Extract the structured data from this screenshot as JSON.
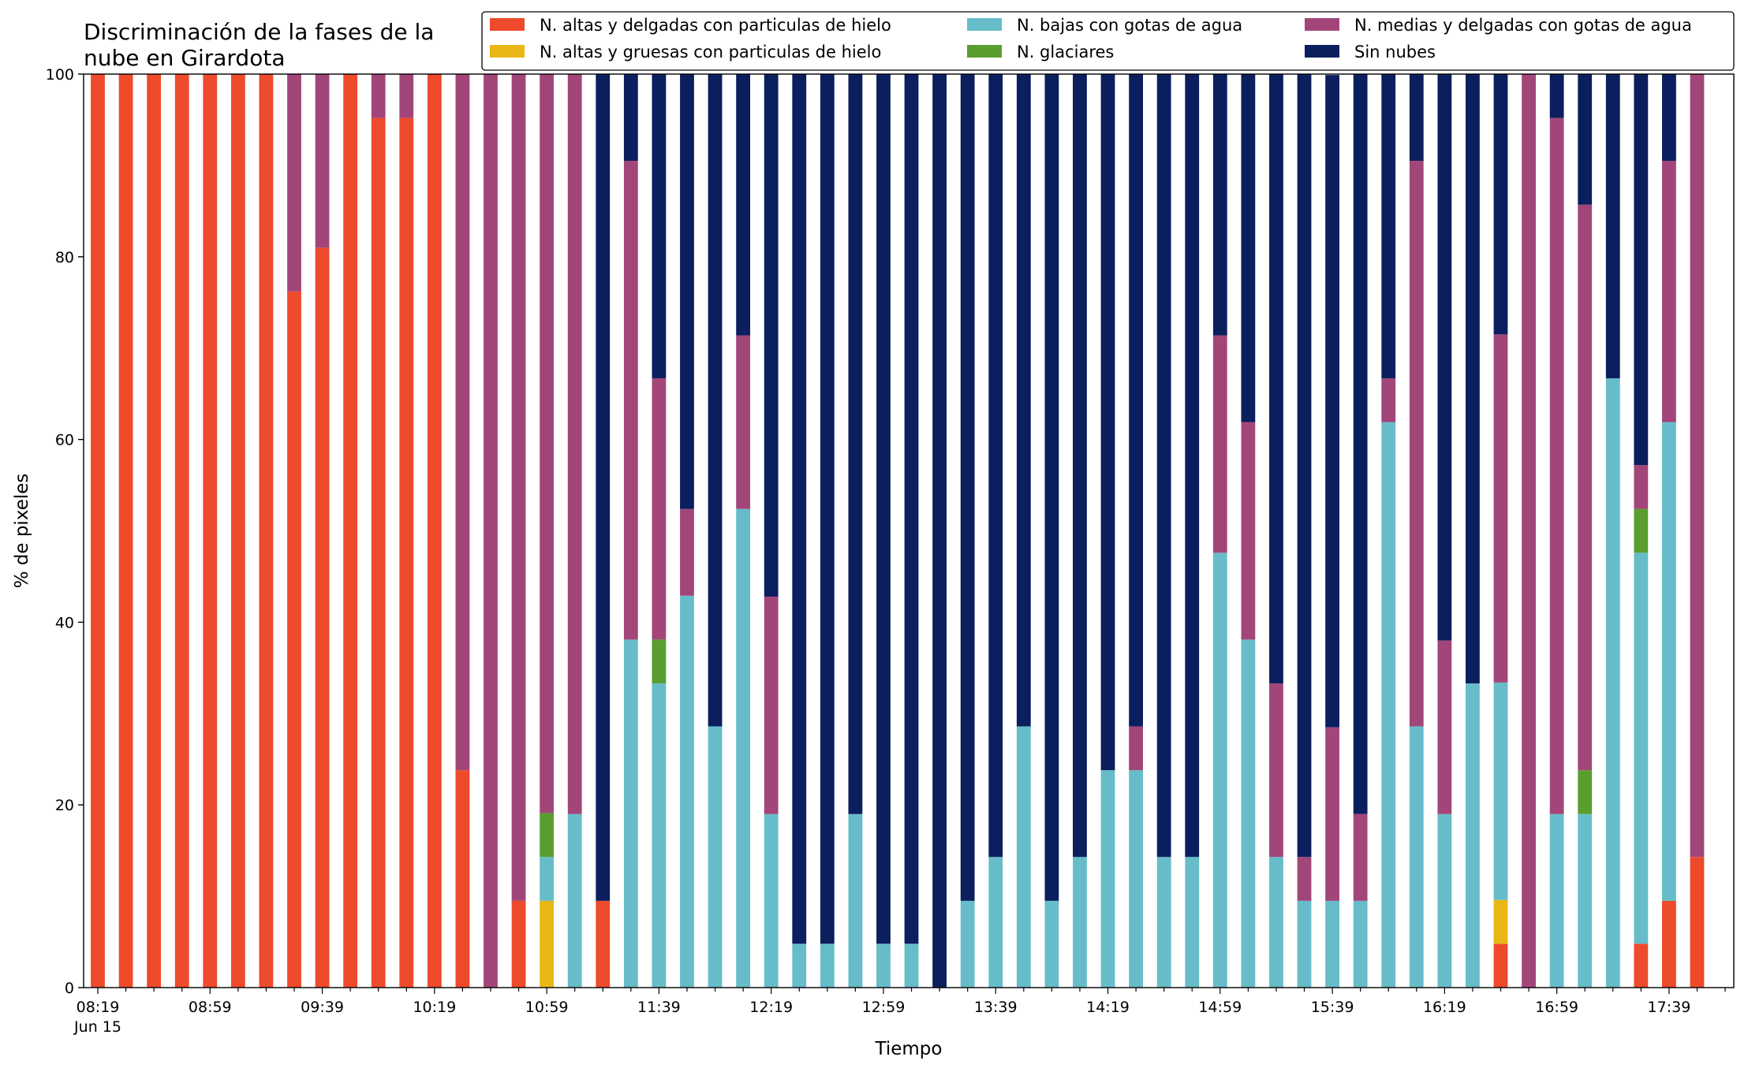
{
  "chart_data": {
    "type": "bar",
    "stacked": true,
    "title_lines": [
      "Discriminación de la fases de la",
      "nube en Girardota"
    ],
    "xlabel": "Tiempo",
    "ylabel": "% de pixeles",
    "ylim": [
      0,
      100
    ],
    "yticks": [
      0,
      20,
      40,
      60,
      80,
      100
    ],
    "grid": false,
    "legend_position": "top-right",
    "x_start": "08:19",
    "x_step_minutes": 10,
    "x_sublabel": "Jun 15",
    "x_labeled_ticks": [
      "08:19",
      "08:59",
      "09:39",
      "10:19",
      "10:59",
      "11:39",
      "12:19",
      "12:59",
      "13:39",
      "14:19",
      "14:59",
      "15:39",
      "16:19",
      "16:59",
      "17:39"
    ],
    "categories": [
      "08:19",
      "08:29",
      "08:39",
      "08:49",
      "08:59",
      "09:09",
      "09:19",
      "09:29",
      "09:39",
      "09:49",
      "09:59",
      "10:09",
      "10:19",
      "10:29",
      "10:39",
      "10:49",
      "10:59",
      "11:09",
      "11:19",
      "11:29",
      "11:39",
      "11:49",
      "11:59",
      "12:09",
      "12:19",
      "12:29",
      "12:39",
      "12:49",
      "12:59",
      "13:09",
      "13:19",
      "13:29",
      "13:39",
      "13:49",
      "13:59",
      "14:09",
      "14:19",
      "14:29",
      "14:39",
      "14:49",
      "14:59",
      "15:09",
      "15:19",
      "15:29",
      "15:39",
      "15:49",
      "15:59",
      "16:09",
      "16:19",
      "16:29",
      "16:39",
      "16:49",
      "16:59",
      "17:09",
      "17:19",
      "17:29",
      "17:39",
      "17:49"
    ],
    "series": [
      {
        "name": "N. altas y delgadas con particulas de hielo",
        "color": "#ee4a2c",
        "values": [
          100,
          100,
          100,
          100,
          100,
          100,
          100,
          76.2,
          81,
          100,
          95.2,
          95.2,
          100,
          23.8,
          0,
          9.5,
          0,
          0,
          9.5,
          0,
          0,
          0,
          0,
          0,
          0,
          0,
          0,
          0,
          0,
          0,
          0,
          0,
          0,
          0,
          0,
          0,
          0,
          0,
          0,
          0,
          0,
          0,
          0,
          0,
          0,
          0,
          0,
          0,
          0,
          0,
          4.8,
          0,
          0,
          0,
          0,
          4.8,
          9.5,
          14.3
        ]
      },
      {
        "name": "N. altas y gruesas con particulas de hielo",
        "color": "#e8b715",
        "values": [
          0,
          0,
          0,
          0,
          0,
          0,
          0,
          0,
          0,
          0,
          0,
          0,
          0,
          0,
          0,
          0,
          9.5,
          0,
          0,
          0,
          0,
          0,
          0,
          0,
          0,
          0,
          0,
          0,
          0,
          0,
          0,
          0,
          0,
          0,
          0,
          0,
          0,
          0,
          0,
          0,
          0,
          0,
          0,
          0,
          0,
          0,
          0,
          0,
          0,
          0,
          4.8,
          0,
          0,
          0,
          0,
          0,
          0,
          0
        ]
      },
      {
        "name": "N. bajas con gotas de agua",
        "color": "#66bdc9",
        "values": [
          0,
          0,
          0,
          0,
          0,
          0,
          0,
          0,
          0,
          0,
          0,
          0,
          0,
          0,
          0,
          0,
          4.8,
          19,
          0,
          38.1,
          33.3,
          42.9,
          28.6,
          52.4,
          19,
          4.8,
          4.8,
          19,
          4.8,
          4.8,
          0,
          9.5,
          14.3,
          28.6,
          9.5,
          14.3,
          23.8,
          23.8,
          14.3,
          14.3,
          47.6,
          38.1,
          14.3,
          9.5,
          9.5,
          9.5,
          61.9,
          28.6,
          19,
          33.3,
          23.8,
          0,
          19,
          19,
          66.7,
          42.8,
          52.4,
          0
        ]
      },
      {
        "name": "N. glaciares",
        "color": "#5a9e2f",
        "values": [
          0,
          0,
          0,
          0,
          0,
          0,
          0,
          0,
          0,
          0,
          0,
          0,
          0,
          0,
          0,
          0,
          4.8,
          0,
          0,
          0,
          4.8,
          0,
          0,
          0,
          0,
          0,
          0,
          0,
          0,
          0,
          0,
          0,
          0,
          0,
          0,
          0,
          0,
          0,
          0,
          0,
          0,
          0,
          0,
          0,
          0,
          0,
          0,
          0,
          0,
          0,
          0,
          0,
          0,
          4.8,
          0,
          4.8,
          0,
          0
        ]
      },
      {
        "name": "N. medias y delgadas con gotas de agua",
        "color": "#a2467a",
        "values": [
          0,
          0,
          0,
          0,
          0,
          0,
          0,
          23.8,
          19,
          0,
          4.8,
          4.8,
          0,
          76.2,
          100,
          90.5,
          81,
          81,
          0,
          52.4,
          28.6,
          9.5,
          0,
          19,
          23.8,
          0,
          0,
          0,
          0,
          0,
          0,
          0,
          0,
          0,
          0,
          0,
          0,
          4.8,
          0,
          0,
          23.8,
          23.8,
          19,
          4.8,
          19,
          9.5,
          4.8,
          61.9,
          19,
          0,
          38.1,
          100,
          76.2,
          61.9,
          0,
          4.8,
          28.6,
          85.7
        ]
      },
      {
        "name": "Sin nubes",
        "color": "#0b1f5e",
        "values": [
          0,
          0,
          0,
          0,
          0,
          0,
          0,
          0,
          0,
          0,
          0,
          0,
          0,
          0,
          0,
          0,
          0,
          0,
          90.5,
          9.5,
          33.3,
          47.6,
          71.4,
          28.6,
          57.2,
          95.2,
          95.2,
          81,
          95.2,
          95.2,
          100,
          90.5,
          85.7,
          71.4,
          90.5,
          85.7,
          76.2,
          71.4,
          85.7,
          85.7,
          28.6,
          38.1,
          66.7,
          85.7,
          71.4,
          81,
          33.3,
          9.5,
          62,
          66.7,
          28.6,
          0,
          4.8,
          14.3,
          33.3,
          42.8,
          9.5,
          0
        ]
      }
    ]
  }
}
